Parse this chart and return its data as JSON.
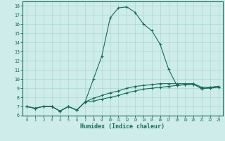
{
  "xlabel": "Humidex (Indice chaleur)",
  "background_color": "#ceecea",
  "line_color": "#1a6b5a",
  "grid_color": "#aad8d3",
  "xlim": [
    -0.5,
    23.5
  ],
  "ylim": [
    6,
    18.5
  ],
  "xticks": [
    0,
    1,
    2,
    3,
    4,
    5,
    6,
    7,
    8,
    9,
    10,
    11,
    12,
    13,
    14,
    15,
    16,
    17,
    18,
    19,
    20,
    21,
    22,
    23
  ],
  "yticks": [
    6,
    7,
    8,
    9,
    10,
    11,
    12,
    13,
    14,
    15,
    16,
    17,
    18
  ],
  "line1_x": [
    0,
    1,
    2,
    3,
    4,
    5,
    6,
    7,
    8,
    9,
    10,
    11,
    12,
    13,
    14,
    15,
    16,
    17,
    18,
    19,
    20,
    21,
    22,
    23
  ],
  "line1_y": [
    7.0,
    6.8,
    7.0,
    7.0,
    6.5,
    7.0,
    6.6,
    7.5,
    10.0,
    12.5,
    16.7,
    17.8,
    17.9,
    17.3,
    16.0,
    15.3,
    13.8,
    11.1,
    9.3,
    9.4,
    9.5,
    8.9,
    9.1,
    9.2
  ],
  "line2_x": [
    0,
    1,
    2,
    3,
    4,
    5,
    6,
    7,
    8,
    9,
    10,
    11,
    12,
    13,
    14,
    15,
    16,
    17,
    18,
    19,
    20,
    21,
    22,
    23
  ],
  "line2_y": [
    7.0,
    6.8,
    7.0,
    7.0,
    6.5,
    7.0,
    6.6,
    7.5,
    7.9,
    8.2,
    8.5,
    8.7,
    9.0,
    9.2,
    9.3,
    9.4,
    9.5,
    9.5,
    9.5,
    9.5,
    9.5,
    9.1,
    9.1,
    9.2
  ],
  "line3_x": [
    0,
    1,
    2,
    3,
    4,
    5,
    6,
    7,
    8,
    9,
    10,
    11,
    12,
    13,
    14,
    15,
    16,
    17,
    18,
    19,
    20,
    21,
    22,
    23
  ],
  "line3_y": [
    7.0,
    6.8,
    7.0,
    7.0,
    6.5,
    7.0,
    6.6,
    7.5,
    7.6,
    7.8,
    8.0,
    8.2,
    8.5,
    8.7,
    8.9,
    9.0,
    9.1,
    9.2,
    9.3,
    9.4,
    9.4,
    9.0,
    9.0,
    9.1
  ]
}
